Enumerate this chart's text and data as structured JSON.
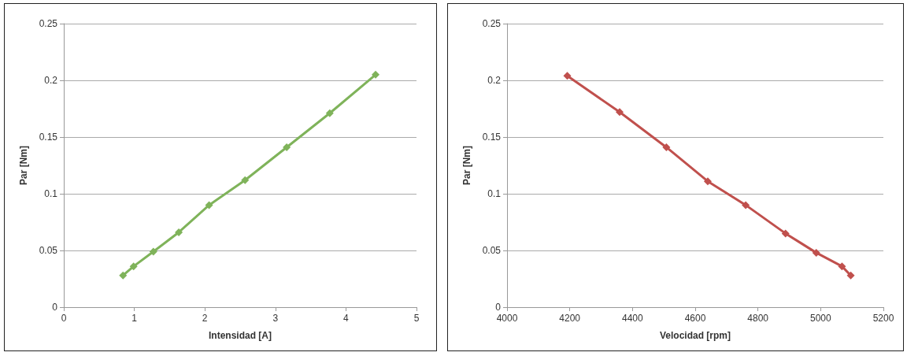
{
  "chart_data": [
    {
      "type": "line",
      "xlabel": "Intensidad [A]",
      "ylabel": "Par [Nm]",
      "x": [
        0.84,
        0.99,
        1.27,
        1.63,
        2.06,
        2.57,
        3.16,
        3.77,
        4.42
      ],
      "series": [
        {
          "color": "#7fb35a",
          "values": [
            0.028,
            0.036,
            0.049,
            0.066,
            0.09,
            0.112,
            0.141,
            0.171,
            0.205
          ]
        }
      ],
      "xlim": [
        0,
        5
      ],
      "xticks": [
        0,
        1,
        2,
        3,
        4,
        5
      ],
      "ylim": [
        0,
        0.25
      ],
      "yticks": [
        0,
        0.05,
        0.1,
        0.15,
        0.2,
        0.25
      ],
      "grid": "y",
      "marker": "diamond",
      "line_style": "solid"
    },
    {
      "type": "line",
      "xlabel": "Velocidad [rpm]",
      "ylabel": "Par [Nm]",
      "x": [
        4192,
        4359,
        4508,
        4640,
        4761,
        4888,
        4986,
        5068,
        5096
      ],
      "series": [
        {
          "color": "#c0504d",
          "values": [
            0.204,
            0.172,
            0.141,
            0.111,
            0.09,
            0.065,
            0.048,
            0.036,
            0.028
          ]
        }
      ],
      "xlim": [
        4000,
        5200
      ],
      "xticks": [
        4000,
        4200,
        4400,
        4600,
        4800,
        5000,
        5200
      ],
      "ylim": [
        0,
        0.25
      ],
      "yticks": [
        0,
        0.05,
        0.1,
        0.15,
        0.2,
        0.25
      ],
      "grid": "y",
      "marker": "diamond",
      "line_style": "solid"
    }
  ]
}
